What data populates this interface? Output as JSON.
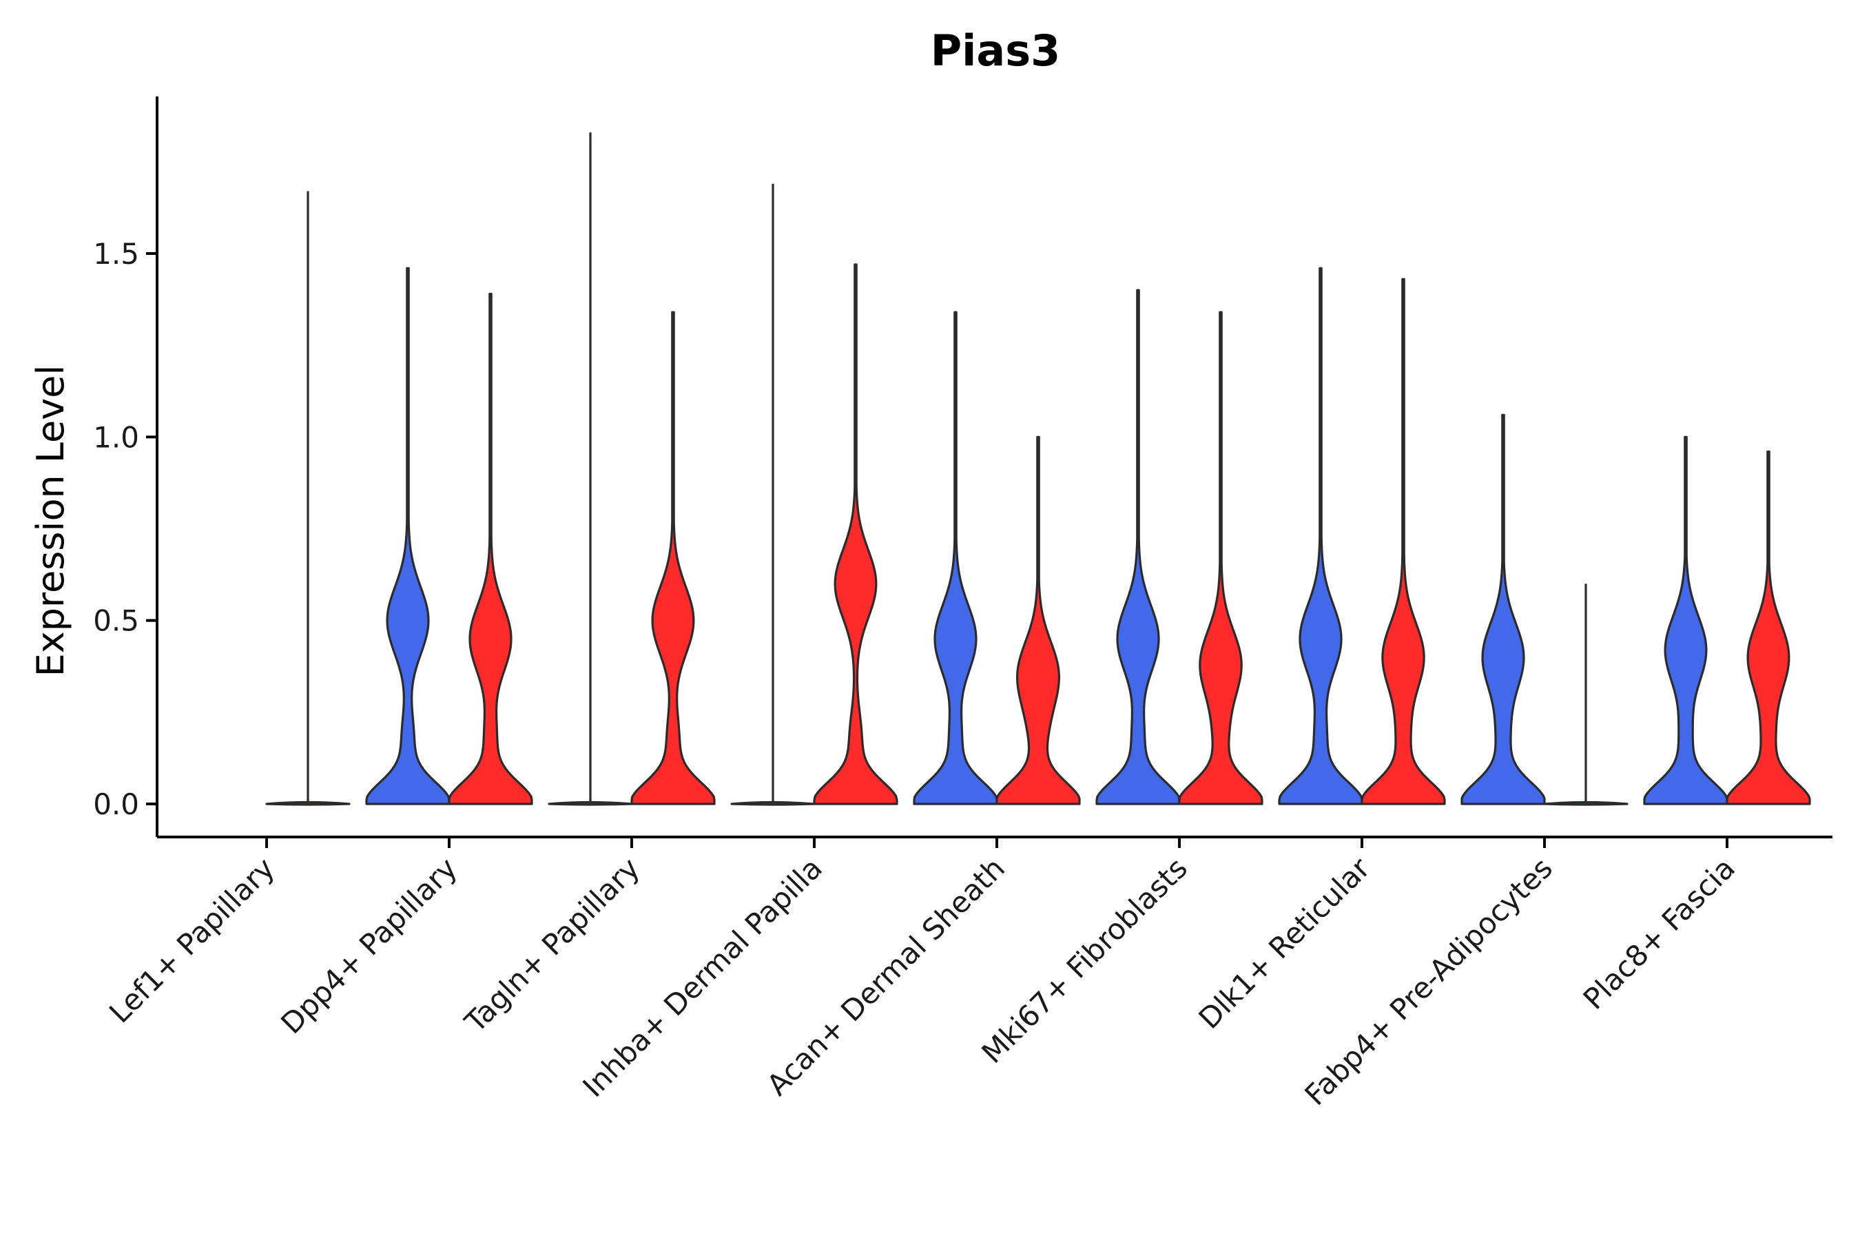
{
  "chart_data": {
    "type": "violin",
    "title": "Pias3",
    "xlabel": "",
    "ylabel": "Expression Level",
    "ylim": [
      -0.1,
      1.93
    ],
    "yticks": [
      "0.0",
      "0.5",
      "1.0",
      "1.5"
    ],
    "series_colors": [
      "#4169e9",
      "#ff2a2a"
    ],
    "categories": [
      "Lef1+ Papillary",
      "Dpp4+ Papillary",
      "Tagln+ Papillary",
      "Inhba+ Dermal Papilla",
      "Acan+ Dermal Sheath",
      "Mki67+ Fibroblasts",
      "Dlk1+ Reticular",
      "Fabp4+ Pre-Adipocytes",
      "Plac8+ Fascia"
    ],
    "violins": [
      {
        "category": "Lef1+ Papillary",
        "group": 1,
        "max": 1.67,
        "shape": "line"
      },
      {
        "category": "Dpp4+ Papillary",
        "group": 0,
        "max": 1.46,
        "mode": 0.5,
        "shape": "bimodal"
      },
      {
        "category": "Dpp4+ Papillary",
        "group": 1,
        "max": 1.39,
        "mode": 0.45,
        "shape": "bimodal"
      },
      {
        "category": "Tagln+ Papillary",
        "group": 0,
        "max": 1.83,
        "shape": "line"
      },
      {
        "category": "Tagln+ Papillary",
        "group": 1,
        "max": 1.34,
        "mode": 0.5,
        "shape": "bimodal"
      },
      {
        "category": "Inhba+ Dermal Papilla",
        "group": 0,
        "max": 1.69,
        "shape": "line"
      },
      {
        "category": "Inhba+ Dermal Papilla",
        "group": 1,
        "max": 1.47,
        "mode": 0.6,
        "shape": "bimodal"
      },
      {
        "category": "Acan+ Dermal Sheath",
        "group": 0,
        "max": 1.34,
        "mode": 0.45,
        "shape": "bimodal"
      },
      {
        "category": "Acan+ Dermal Sheath",
        "group": 1,
        "max": 1.0,
        "mode": 0.35,
        "shape": "bimodal"
      },
      {
        "category": "Mki67+ Fibroblasts",
        "group": 0,
        "max": 1.4,
        "mode": 0.45,
        "shape": "bimodal"
      },
      {
        "category": "Mki67+ Fibroblasts",
        "group": 1,
        "max": 1.34,
        "mode": 0.38,
        "shape": "bimodal"
      },
      {
        "category": "Dlk1+ Reticular",
        "group": 0,
        "max": 1.46,
        "mode": 0.45,
        "shape": "bimodal"
      },
      {
        "category": "Dlk1+ Reticular",
        "group": 1,
        "max": 1.43,
        "mode": 0.4,
        "shape": "bimodal"
      },
      {
        "category": "Fabp4+ Pre-Adipocytes",
        "group": 0,
        "max": 1.06,
        "mode": 0.4,
        "shape": "bimodal"
      },
      {
        "category": "Fabp4+ Pre-Adipocytes",
        "group": 1,
        "max": 0.6,
        "shape": "line"
      },
      {
        "category": "Plac8+ Fascia",
        "group": 0,
        "max": 1.0,
        "mode": 0.42,
        "shape": "bimodal"
      },
      {
        "category": "Plac8+ Fascia",
        "group": 1,
        "max": 0.96,
        "mode": 0.4,
        "shape": "bimodal"
      }
    ]
  }
}
